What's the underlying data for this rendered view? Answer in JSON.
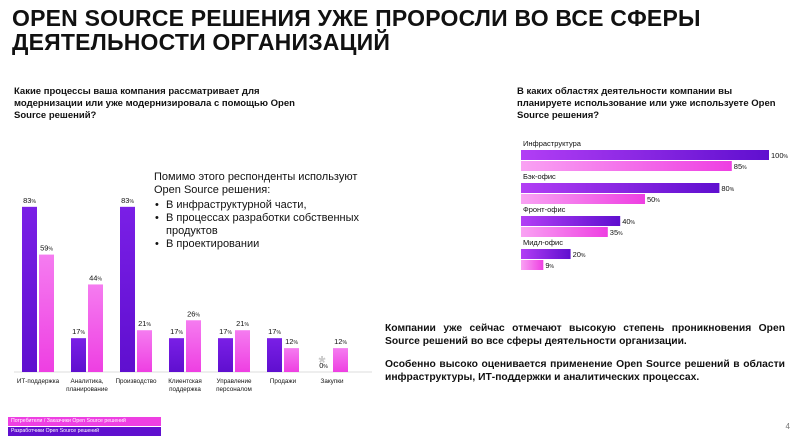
{
  "title": "OPEN SOURCE РЕШЕНИЯ УЖЕ ПРОРОСЛИ ВО ВСЕ СФЕРЫ ДЕЯТЕЛЬНОСТИ ОРГАНИЗАЦИЙ",
  "question1": "Какие процессы ваша компания рассматривает для модернизации или уже модернизировала с помощью Open Source решений?",
  "question2": "В каких областях деятельности компании вы планируете использование или уже используете Open Source решения?",
  "note": {
    "intro": "Помимо этого респонденты используют Open Source решения:",
    "items": [
      "В инфраструктурной части,",
      "В процессах разработки собственных продуктов",
      "В проектировании"
    ]
  },
  "conclusion1": "Компании уже сейчас отмечают высокую степень проникновения Open Source решений во все сферы деятельности организации.",
  "conclusion2": "Особенно высоко оценивается применение Open Source решений в области инфраструктуры, ИТ-поддержки и аналитических процессах.",
  "legend": [
    "Потребители / Заказчики Open Source решений",
    "Разработчики Open Source решений"
  ],
  "page_number": "4",
  "colors": {
    "developers": "#5f0fcf",
    "consumers": "#ee3fe2"
  },
  "chart_data": [
    {
      "type": "bar",
      "categories": [
        "ИТ-поддержка",
        "Аналитика, планирование",
        "Производство",
        "Клиентская поддержка",
        "Управление персоналом",
        "Продажи",
        "Закупки"
      ],
      "series": [
        {
          "name": "Разработчики Open Source решений",
          "values": [
            83,
            17,
            83,
            17,
            17,
            17,
            0
          ]
        },
        {
          "name": "Потребители / Заказчики Open Source решений",
          "values": [
            59,
            44,
            21,
            26,
            21,
            12,
            12
          ]
        }
      ],
      "ylim": [
        0,
        100
      ],
      "value_suffix": "%",
      "annotations": [
        "*"
      ]
    },
    {
      "type": "bar",
      "orientation": "horizontal",
      "categories": [
        "Инфраструктура",
        "Бэк-офис",
        "Фронт-офис",
        "Мидл-офис"
      ],
      "series": [
        {
          "name": "Разработчики Open Source решений",
          "values": [
            100,
            80,
            40,
            20
          ]
        },
        {
          "name": "Потребители / Заказчики Open Source решений",
          "values": [
            85,
            50,
            35,
            9
          ]
        }
      ],
      "xlim": [
        0,
        100
      ],
      "value_suffix": "%"
    }
  ]
}
